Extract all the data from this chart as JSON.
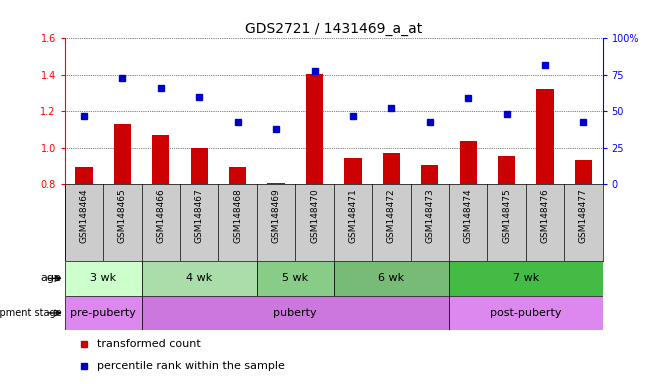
{
  "title": "GDS2721 / 1431469_a_at",
  "samples": [
    "GSM148464",
    "GSM148465",
    "GSM148466",
    "GSM148467",
    "GSM148468",
    "GSM148469",
    "GSM148470",
    "GSM148471",
    "GSM148472",
    "GSM148473",
    "GSM148474",
    "GSM148475",
    "GSM148476",
    "GSM148477"
  ],
  "transformed_count": [
    0.895,
    1.13,
    1.07,
    1.0,
    0.895,
    0.805,
    1.405,
    0.945,
    0.97,
    0.905,
    1.04,
    0.955,
    1.32,
    0.935
  ],
  "percentile_rank": [
    47,
    73,
    66,
    60,
    43,
    38,
    78,
    47,
    52,
    43,
    59,
    48,
    82,
    43
  ],
  "bar_color": "#cc0000",
  "dot_color": "#0000cc",
  "ylim_left": [
    0.8,
    1.6
  ],
  "yticks_left": [
    0.8,
    1.0,
    1.2,
    1.4,
    1.6
  ],
  "yticks_right": [
    0,
    25,
    50,
    75,
    100
  ],
  "age_groups": [
    {
      "label": "3 wk",
      "start": 0,
      "end": 1,
      "color": "#ccffcc"
    },
    {
      "label": "4 wk",
      "start": 2,
      "end": 4,
      "color": "#aaddaa"
    },
    {
      "label": "5 wk",
      "start": 5,
      "end": 6,
      "color": "#88cc88"
    },
    {
      "label": "6 wk",
      "start": 7,
      "end": 9,
      "color": "#77bb77"
    },
    {
      "label": "7 wk",
      "start": 10,
      "end": 13,
      "color": "#44bb44"
    }
  ],
  "dev_groups": [
    {
      "label": "pre-puberty",
      "start": 0,
      "end": 1,
      "color": "#dd88ee"
    },
    {
      "label": "puberty",
      "start": 2,
      "end": 9,
      "color": "#cc77dd"
    },
    {
      "label": "post-puberty",
      "start": 10,
      "end": 13,
      "color": "#dd88ee"
    }
  ],
  "header_bg": "#cccccc",
  "grid_style": "dotted",
  "bar_baseline": 0.8
}
